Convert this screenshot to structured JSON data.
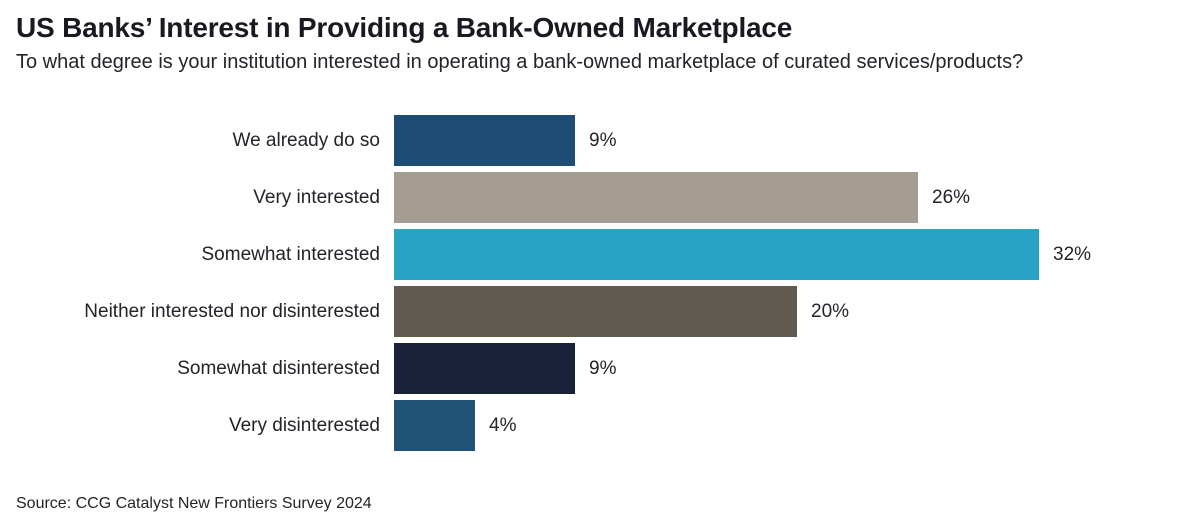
{
  "chart_data": {
    "type": "bar",
    "orientation": "horizontal",
    "title": "US Banks’ Interest in Providing a Bank-Owned Marketplace",
    "subtitle": "To what degree is your institution interested in operating a bank-owned marketplace of curated services/products?",
    "source": "Source: CCG Catalyst New Frontiers Survey 2024",
    "categories": [
      "We already do so",
      "Very interested",
      "Somewhat interested",
      "Neither interested nor disinterested",
      "Somewhat disinterested",
      "Very disinterested"
    ],
    "values": [
      9,
      26,
      32,
      20,
      9,
      4
    ],
    "value_labels": [
      "9%",
      "26%",
      "32%",
      "20%",
      "9%",
      "4%"
    ],
    "bar_colors": [
      "#1d4d74",
      "#a49c91",
      "#29a3c4",
      "#615a51",
      "#192239",
      "#215379"
    ],
    "text_color": "#232329",
    "xlim": [
      0,
      32
    ],
    "grid": false,
    "legend": false,
    "value_label_position": "right-of-bar",
    "category_label_position": "left-of-bar"
  }
}
